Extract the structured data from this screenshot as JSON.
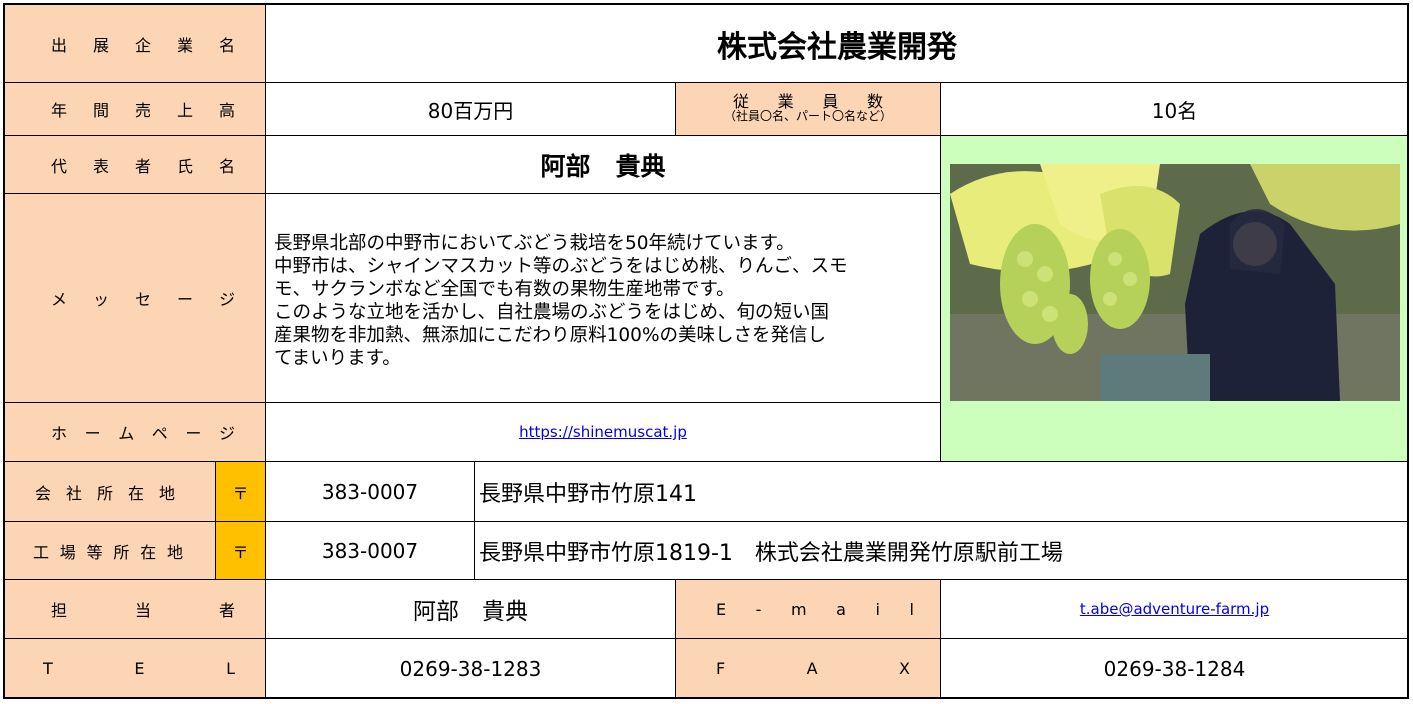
{
  "company": {
    "label": "出 展 企 業 名",
    "value": "株式会社農業開発"
  },
  "sales": {
    "label": "年 間 売 上 高",
    "value": "80百万円"
  },
  "employees": {
    "label": "従 業 員 数",
    "note": "（社員〇名、パート〇名など）",
    "value": "10名"
  },
  "representative": {
    "label": "代 表 者 氏 名",
    "value": "阿部　貴典"
  },
  "message": {
    "label": "メ ッ セ ー ジ",
    "lines": [
      "長野県北部の中野市においてぶどう栽培を50年続けています。",
      "中野市は、シャインマスカット等のぶどうをはじめ桃、りんご、スモ",
      "モ、サクランボなど全国でも有数の果物生産地帯です。",
      "このような立地を活かし、自社農場のぶどうをはじめ、旬の短い国",
      "産果物を非加熱、無添加にこだわり原料100%の美味しさを発信し",
      "てまいります。"
    ]
  },
  "homepage": {
    "label": "ホ ー ム ペ ー ジ",
    "value": "https://shinemuscat.jp"
  },
  "office": {
    "label": "会 社 所 在 地",
    "postal_mark": "〒",
    "zip": "383-0007",
    "address": "長野県中野市竹原141"
  },
  "factory": {
    "label": "工 場 等 所 在 地",
    "postal_mark": "〒",
    "zip": "383-0007",
    "address": "長野県中野市竹原1819-1　株式会社農業開発竹原駅前工場"
  },
  "contact": {
    "label": "担 当 者",
    "value": "阿部　貴典",
    "email_label": "E - m a i l",
    "email": "t.abe@adventure-farm.jp"
  },
  "phone": {
    "label": "T E L",
    "value": "0269-38-1283",
    "fax_label": "F A X",
    "fax": "0269-38-1284"
  }
}
